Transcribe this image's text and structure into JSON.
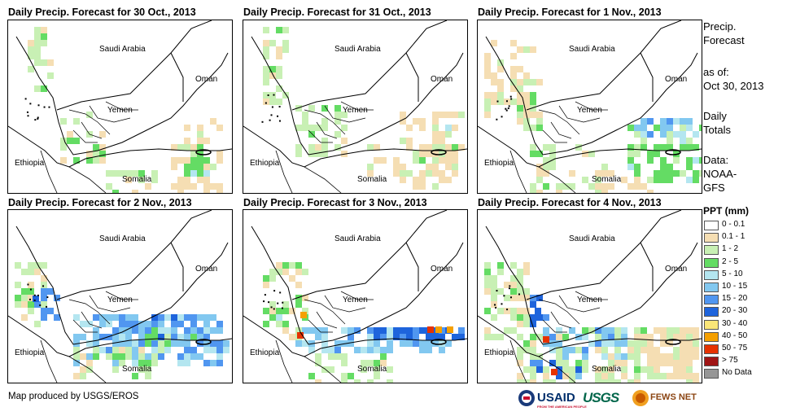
{
  "panels": [
    {
      "title": "Daily Precip. Forecast for 30 Oct., 2013"
    },
    {
      "title": "Daily Precip. Forecast for 31 Oct., 2013"
    },
    {
      "title": "Daily Precip. Forecast for 1 Nov., 2013"
    },
    {
      "title": "Daily Precip. Forecast for 2 Nov., 2013"
    },
    {
      "title": "Daily Precip. Forecast for 3 Nov., 2013"
    },
    {
      "title": "Daily Precip. Forecast for 4 Nov., 2013"
    }
  ],
  "map_labels": {
    "saudi": "Saudi Arabia",
    "oman": "Oman",
    "yemen": "Yemen",
    "ethiopia": "Ethiopia",
    "somalia": "Somalia"
  },
  "side": {
    "title_line1": "Precip.",
    "title_line2": "Forecast",
    "asof_line1": "as of:",
    "asof_line2": "Oct 30, 2013",
    "daily_line1": "Daily",
    "daily_line2": "Totals",
    "data_line1": "Data:",
    "data_line2": "NOAA-",
    "data_line3": "GFS"
  },
  "legend": {
    "title": "PPT (mm)",
    "items": [
      {
        "label": "0 - 0.1",
        "color": "#ffffff"
      },
      {
        "label": "0.1 - 1",
        "color": "#f5deb3"
      },
      {
        "label": "1 - 2",
        "color": "#c8f0b4"
      },
      {
        "label": "2 - 5",
        "color": "#64dc64"
      },
      {
        "label": "5 - 10",
        "color": "#b4e6f0"
      },
      {
        "label": "10 - 15",
        "color": "#82c8f0"
      },
      {
        "label": "15 - 20",
        "color": "#5096f0"
      },
      {
        "label": "20 - 30",
        "color": "#1e64dc"
      },
      {
        "label": "30 - 40",
        "color": "#fae678"
      },
      {
        "label": "40 - 50",
        "color": "#f5a000"
      },
      {
        "label": "50 - 75",
        "color": "#e63200"
      },
      {
        "label": "> 75",
        "color": "#a01414"
      },
      {
        "label": "No Data",
        "color": "#969696"
      }
    ]
  },
  "footer": "Map produced by USGS/EROS",
  "logos": {
    "usaid": "USAID",
    "usaid_tag": "FROM THE AMERICAN PEOPLE",
    "usgs": "USGS",
    "fews": "FEWS NET"
  }
}
